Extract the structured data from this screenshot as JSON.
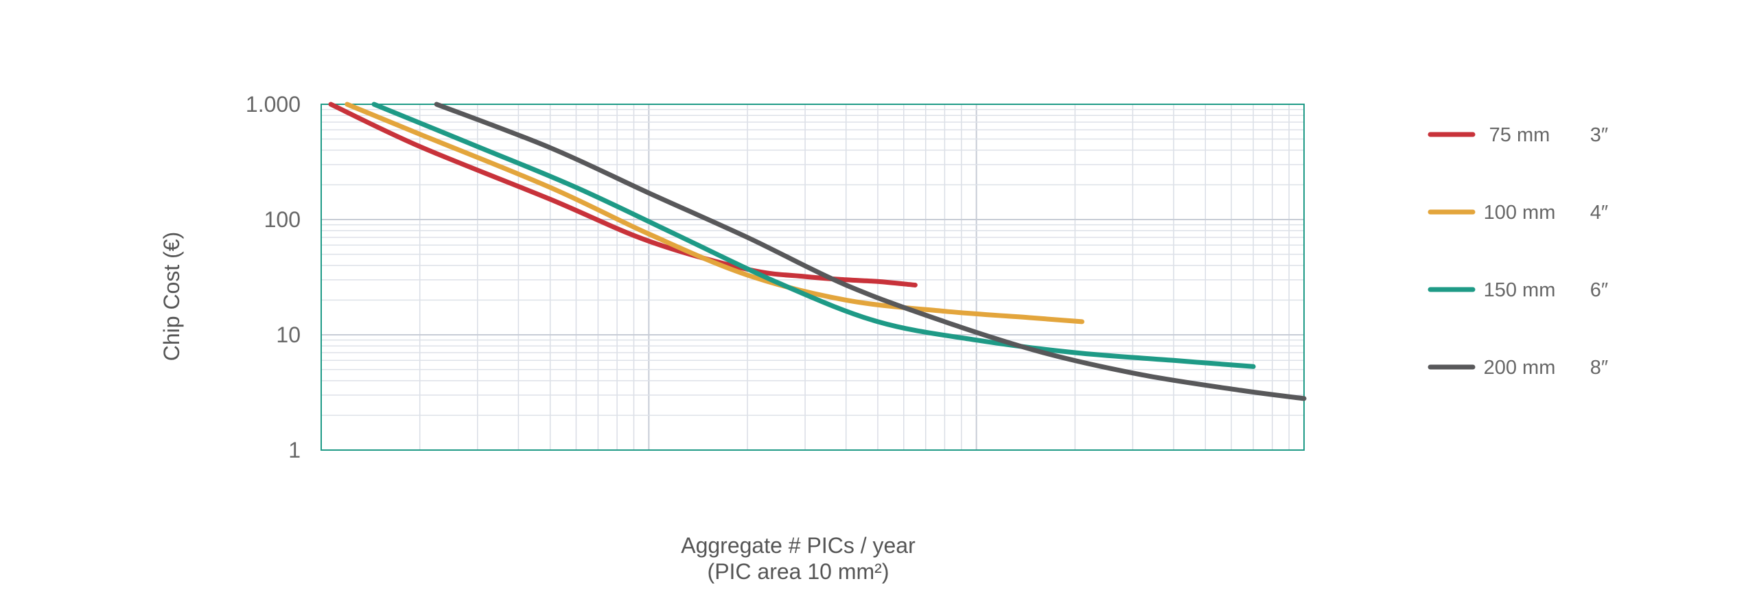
{
  "chart_data": {
    "type": "line",
    "title": "",
    "xlabel": [
      "Aggregate # PICs / year",
      "(PIC area 10 mm²)"
    ],
    "ylabel": "Chip Cost (€)",
    "y_scale": "log",
    "x_scale": "log",
    "ylim": [
      1,
      1000
    ],
    "xlim": [
      1,
      1000
    ],
    "yticks": [
      {
        "value": 1000,
        "label": "1.000"
      },
      {
        "value": 100,
        "label": "100"
      },
      {
        "value": 10,
        "label": "10"
      },
      {
        "value": 1,
        "label": "1"
      }
    ],
    "grid": true,
    "legend_position": "right",
    "series": [
      {
        "name": "75 mm",
        "size": "3″",
        "color": "#c8323a",
        "x": [
          1.07,
          2.0,
          5.0,
          10.0,
          20.0,
          30.0,
          40.0,
          50.0,
          65.0
        ],
        "y": [
          1000,
          430,
          150,
          65,
          37,
          32,
          30,
          29,
          27
        ]
      },
      {
        "name": "100 mm",
        "size": "4″",
        "color": "#e3a53c",
        "x": [
          1.2,
          2.0,
          5.0,
          10.0,
          20.0,
          40.0,
          80.0,
          150.0,
          210.0
        ],
        "y": [
          1000,
          550,
          190,
          75,
          33,
          20,
          16,
          14,
          13
        ]
      },
      {
        "name": "150 mm",
        "size": "6″",
        "color": "#1e9a86",
        "x": [
          1.45,
          3.0,
          6.0,
          12.0,
          25.0,
          50.0,
          100.0,
          200.0,
          400.0,
          700.0
        ],
        "y": [
          1000,
          430,
          190,
          75,
          28,
          13,
          9,
          7,
          6,
          5.3
        ]
      },
      {
        "name": "200 mm",
        "size": "8″",
        "color": "#58585a",
        "x": [
          2.25,
          5.0,
          10.0,
          20.0,
          40.0,
          80.0,
          160.0,
          320.0,
          640.0,
          1000.0
        ],
        "y": [
          1000,
          420,
          170,
          70,
          27,
          13,
          7,
          4.5,
          3.3,
          2.8
        ]
      }
    ]
  }
}
